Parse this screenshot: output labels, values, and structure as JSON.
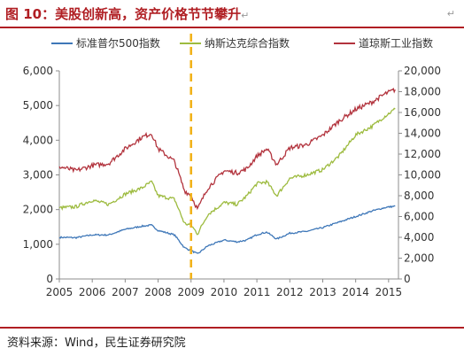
{
  "header": {
    "title": "图 10：美股创新高，资产价格节节攀升",
    "return_mark": "↵"
  },
  "footer": {
    "source": "资料来源：Wind，民生证券研究院"
  },
  "colors": {
    "title": "#b01e23",
    "sp500": "#3e77b8",
    "nasdaq": "#9dbb3f",
    "dow": "#b2333d",
    "marker": "#f2b21a",
    "axis": "#8c8c8c"
  },
  "chart_data": {
    "type": "line",
    "legend_position": "top",
    "grid": false,
    "x_ticks": [
      "2005",
      "2006",
      "2007",
      "2008",
      "2009",
      "2010",
      "2011",
      "2012",
      "2013",
      "2014",
      "2015"
    ],
    "x_range": [
      2005.0,
      2015.3
    ],
    "y_left": {
      "range": [
        0,
        6000
      ],
      "ticks": [
        "0",
        "1,000",
        "2,000",
        "3,000",
        "4,000",
        "5,000",
        "6,000"
      ]
    },
    "y_right": {
      "range": [
        0,
        20000
      ],
      "ticks": [
        "0",
        "2,000",
        "4,000",
        "6,000",
        "8,000",
        "10,000",
        "12,000",
        "14,000",
        "16,000",
        "18,000",
        "20,000"
      ]
    },
    "vertical_marker": {
      "x": 2009.0,
      "style": "dashed"
    },
    "series": [
      {
        "name": "标准普尔500指数",
        "axis": "left",
        "points": [
          [
            2005.0,
            1200
          ],
          [
            2005.5,
            1190
          ],
          [
            2006.0,
            1270
          ],
          [
            2006.5,
            1270
          ],
          [
            2007.0,
            1430
          ],
          [
            2007.5,
            1520
          ],
          [
            2007.8,
            1550
          ],
          [
            2008.0,
            1400
          ],
          [
            2008.5,
            1270
          ],
          [
            2008.8,
            900
          ],
          [
            2009.0,
            820
          ],
          [
            2009.2,
            720
          ],
          [
            2009.5,
            950
          ],
          [
            2010.0,
            1120
          ],
          [
            2010.4,
            1070
          ],
          [
            2010.7,
            1120
          ],
          [
            2011.0,
            1280
          ],
          [
            2011.3,
            1350
          ],
          [
            2011.6,
            1150
          ],
          [
            2012.0,
            1320
          ],
          [
            2012.5,
            1370
          ],
          [
            2013.0,
            1480
          ],
          [
            2013.5,
            1640
          ],
          [
            2014.0,
            1800
          ],
          [
            2014.5,
            1960
          ],
          [
            2014.9,
            2060
          ],
          [
            2015.2,
            2100
          ]
        ]
      },
      {
        "name": "纳斯达克综合指数",
        "axis": "left",
        "points": [
          [
            2005.0,
            2050
          ],
          [
            2005.5,
            2080
          ],
          [
            2006.0,
            2270
          ],
          [
            2006.5,
            2150
          ],
          [
            2007.0,
            2450
          ],
          [
            2007.5,
            2620
          ],
          [
            2007.8,
            2800
          ],
          [
            2008.0,
            2400
          ],
          [
            2008.5,
            2300
          ],
          [
            2008.8,
            1600
          ],
          [
            2009.0,
            1550
          ],
          [
            2009.2,
            1300
          ],
          [
            2009.5,
            1850
          ],
          [
            2010.0,
            2200
          ],
          [
            2010.4,
            2150
          ],
          [
            2010.7,
            2400
          ],
          [
            2011.0,
            2750
          ],
          [
            2011.3,
            2800
          ],
          [
            2011.6,
            2400
          ],
          [
            2012.0,
            2900
          ],
          [
            2012.5,
            3000
          ],
          [
            2013.0,
            3150
          ],
          [
            2013.5,
            3550
          ],
          [
            2014.0,
            4150
          ],
          [
            2014.5,
            4400
          ],
          [
            2014.9,
            4700
          ],
          [
            2015.2,
            4900
          ]
        ]
      },
      {
        "name": "道琼斯工业指数",
        "axis": "right",
        "points": [
          [
            2005.0,
            10800
          ],
          [
            2005.5,
            10400
          ],
          [
            2006.0,
            10900
          ],
          [
            2006.5,
            11100
          ],
          [
            2007.0,
            12500
          ],
          [
            2007.5,
            13600
          ],
          [
            2007.8,
            14000
          ],
          [
            2008.0,
            12500
          ],
          [
            2008.5,
            11300
          ],
          [
            2008.8,
            8500
          ],
          [
            2009.0,
            8000
          ],
          [
            2009.2,
            6700
          ],
          [
            2009.5,
            8700
          ],
          [
            2010.0,
            10400
          ],
          [
            2010.4,
            10200
          ],
          [
            2010.7,
            10600
          ],
          [
            2011.0,
            11800
          ],
          [
            2011.3,
            12500
          ],
          [
            2011.6,
            11000
          ],
          [
            2012.0,
            12600
          ],
          [
            2012.5,
            12900
          ],
          [
            2013.0,
            13800
          ],
          [
            2013.5,
            15200
          ],
          [
            2014.0,
            16300
          ],
          [
            2014.5,
            17000
          ],
          [
            2014.9,
            17800
          ],
          [
            2015.2,
            18200
          ]
        ]
      }
    ]
  }
}
